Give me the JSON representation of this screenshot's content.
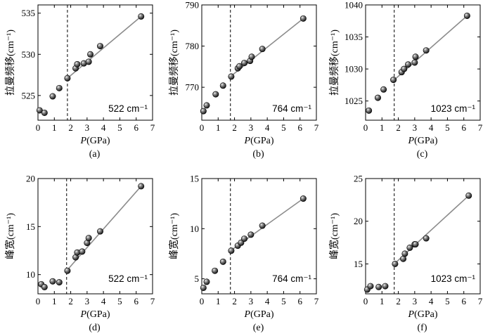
{
  "chart_data": [
    {
      "type": "scatter",
      "panel_label": "(a)",
      "annotation": "522 cm⁻¹",
      "xlabel_italic": "P",
      "xlabel_rest": "(GPa)",
      "ylabel_main": "拉曼频移",
      "ylabel_unit": "(cm⁻¹)",
      "xlim": [
        0,
        7
      ],
      "ylim": [
        522,
        536
      ],
      "xticks": [
        "0",
        "1",
        "2",
        "3",
        "4",
        "5",
        "6",
        "7"
      ],
      "yticks": [
        525,
        530,
        535
      ],
      "ytick_labels": [
        "525",
        "530",
        "535"
      ],
      "dashed_x": 1.8,
      "x": [
        0.1,
        0.4,
        0.9,
        1.3,
        1.8,
        2.3,
        2.4,
        2.8,
        3.1,
        3.2,
        3.8,
        6.3
      ],
      "y": [
        523.2,
        522.9,
        524.9,
        525.9,
        527.1,
        528.3,
        528.8,
        528.9,
        529.1,
        530.0,
        531.0,
        534.6
      ],
      "fit": [
        [
          1.8,
          527.1
        ],
        [
          6.3,
          534.6
        ]
      ]
    },
    {
      "type": "scatter",
      "panel_label": "(b)",
      "annotation": "764 cm⁻¹",
      "xlabel_italic": "P",
      "xlabel_rest": "(GPa)",
      "ylabel_main": "拉曼频移",
      "ylabel_unit": "(cm⁻¹)",
      "xlim": [
        0,
        7
      ],
      "ylim": [
        762,
        790
      ],
      "xticks": [
        "0",
        "1",
        "2",
        "3",
        "4",
        "5",
        "6",
        "7"
      ],
      "yticks": [
        770,
        780,
        790
      ],
      "ytick_labels": [
        "770",
        "780",
        "790"
      ],
      "dashed_x": 1.75,
      "x": [
        0.1,
        0.3,
        0.85,
        1.3,
        1.8,
        2.2,
        2.3,
        2.6,
        2.95,
        3.05,
        3.7,
        6.2
      ],
      "y": [
        764.2,
        765.6,
        768.3,
        770.4,
        772.6,
        774.6,
        775.1,
        775.9,
        776.4,
        777.4,
        779.3,
        786.7
      ],
      "fit": [
        [
          1.75,
          772.6
        ],
        [
          6.2,
          786.7
        ]
      ]
    },
    {
      "type": "scatter",
      "panel_label": "(c)",
      "annotation": "1023 cm⁻¹",
      "xlabel_italic": "P",
      "xlabel_rest": "(GPa)",
      "ylabel_main": "拉曼频移",
      "ylabel_unit": "(cm⁻¹)",
      "xlim": [
        0,
        7
      ],
      "ylim": [
        1022,
        1040
      ],
      "xticks": [
        "0",
        "1",
        "2",
        "3",
        "4",
        "5",
        "6",
        "7"
      ],
      "yticks": [
        1025,
        1030,
        1035,
        1040
      ],
      "ytick_labels": [
        "1025",
        "1030",
        "1035",
        "1040"
      ],
      "dashed_x": 1.75,
      "x": [
        0.2,
        0.75,
        1.1,
        1.7,
        2.2,
        2.35,
        2.6,
        3.0,
        3.05,
        3.7,
        6.2
      ],
      "y": [
        1023.5,
        1025.5,
        1026.8,
        1028.3,
        1029.5,
        1030.0,
        1030.7,
        1031.0,
        1031.9,
        1032.9,
        1038.3
      ],
      "fit": [
        [
          1.75,
          1028.3
        ],
        [
          6.2,
          1038.3
        ]
      ]
    },
    {
      "type": "scatter",
      "panel_label": "(d)",
      "annotation": "522 cm⁻¹",
      "xlabel_italic": "P",
      "xlabel_rest": "(GPa)",
      "ylabel_main": "峰宽",
      "ylabel_unit": "(cm⁻¹)",
      "xlim": [
        0,
        7
      ],
      "ylim": [
        8,
        20
      ],
      "xticks": [
        "0",
        "1",
        "2",
        "3",
        "4",
        "5",
        "6",
        "7"
      ],
      "yticks": [
        10,
        15,
        20
      ],
      "ytick_labels": [
        "10",
        "15",
        "20"
      ],
      "dashed_x": 1.75,
      "x": [
        0.2,
        0.4,
        0.9,
        1.3,
        1.8,
        2.3,
        2.4,
        2.7,
        3.0,
        3.1,
        3.8,
        6.3
      ],
      "y": [
        9.0,
        8.7,
        9.3,
        9.2,
        10.4,
        11.8,
        12.3,
        12.4,
        13.3,
        13.8,
        14.5,
        19.2
      ],
      "fit": [
        [
          1.75,
          10.4
        ],
        [
          6.3,
          19.2
        ]
      ]
    },
    {
      "type": "scatter",
      "panel_label": "(e)",
      "annotation": "764 cm⁻¹",
      "xlabel_italic": "P",
      "xlabel_rest": "(GPa)",
      "ylabel_main": "峰宽",
      "ylabel_unit": "(cm⁻¹)",
      "xlim": [
        0,
        7
      ],
      "ylim": [
        3.5,
        15
      ],
      "xticks": [
        "0",
        "1",
        "2",
        "3",
        "4",
        "5",
        "6",
        "7"
      ],
      "yticks": [
        5,
        10,
        15
      ],
      "ytick_labels": [
        "5",
        "10",
        "15"
      ],
      "dashed_x": 1.75,
      "x": [
        0.1,
        0.3,
        0.8,
        1.3,
        1.8,
        2.2,
        2.4,
        2.6,
        3.0,
        3.7,
        6.2
      ],
      "y": [
        4.1,
        4.7,
        5.8,
        6.7,
        7.8,
        8.3,
        8.6,
        9.0,
        9.4,
        10.3,
        13.0
      ],
      "fit": [
        [
          1.75,
          7.8
        ],
        [
          6.2,
          13.0
        ]
      ]
    },
    {
      "type": "scatter",
      "panel_label": "(f)",
      "annotation": "1023 cm⁻¹",
      "xlabel_italic": "P",
      "xlabel_rest": "(GPa)",
      "ylabel_main": "峰宽",
      "ylabel_unit": "(cm⁻¹)",
      "xlim": [
        0,
        7
      ],
      "ylim": [
        11.5,
        25
      ],
      "xticks": [
        "0",
        "1",
        "2",
        "3",
        "4",
        "5",
        "6",
        "7"
      ],
      "yticks": [
        15,
        20,
        25
      ],
      "ytick_labels": [
        "15",
        "20",
        "25"
      ],
      "dashed_x": 1.75,
      "x": [
        0.1,
        0.3,
        0.8,
        1.2,
        1.8,
        2.3,
        2.4,
        2.7,
        3.0,
        3.05,
        3.7,
        6.3
      ],
      "y": [
        12.0,
        12.4,
        12.3,
        12.4,
        15.0,
        15.6,
        16.2,
        16.9,
        17.3,
        17.3,
        18.0,
        23.0
      ],
      "fit": [
        [
          1.75,
          15.0
        ],
        [
          6.3,
          23.0
        ]
      ]
    }
  ]
}
